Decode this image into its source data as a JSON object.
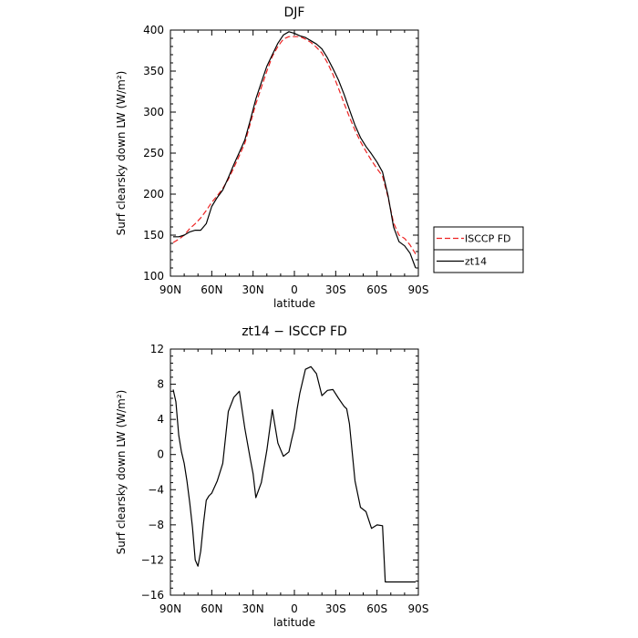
{
  "chart_data": [
    {
      "type": "line",
      "title": "DJF",
      "xlabel": "latitude",
      "ylabel": "Surf clearsky down LW (W/m²)",
      "xlim": [
        90,
        -90
      ],
      "ylim": [
        100,
        400
      ],
      "x_ticks": [
        90,
        60,
        30,
        0,
        -30,
        -60,
        -90
      ],
      "x_tick_labels": [
        "90N",
        "60N",
        "30N",
        "0",
        "30S",
        "60S",
        "90S"
      ],
      "y_ticks": [
        100,
        150,
        200,
        250,
        300,
        350,
        400
      ],
      "y_tick_labels": [
        "100",
        "150",
        "200",
        "250",
        "300",
        "350",
        "400"
      ],
      "legend_position": "outside-right",
      "series": [
        {
          "name": "ISCCP FD",
          "color": "#ee2222",
          "dash": "dashed",
          "x": [
            88,
            84,
            80,
            76,
            72,
            68,
            64,
            60,
            56,
            52,
            48,
            44,
            40,
            36,
            32,
            28,
            24,
            20,
            16,
            12,
            8,
            4,
            0,
            -4,
            -8,
            -12,
            -16,
            -20,
            -24,
            -28,
            -32,
            -36,
            -40,
            -44,
            -48,
            -52,
            -56,
            -60,
            -64,
            -68,
            -72,
            -76,
            -80,
            -84,
            -88
          ],
          "values": [
            141,
            145,
            150,
            158,
            164,
            171,
            180,
            190,
            198,
            207,
            218,
            232,
            247,
            262,
            286,
            310,
            330,
            350,
            368,
            380,
            389,
            392,
            392,
            392,
            389,
            385,
            379,
            372,
            360,
            346,
            329,
            311,
            294,
            278,
            264,
            252,
            241,
            231,
            222,
            196,
            165,
            150,
            146,
            138,
            127
          ]
        },
        {
          "name": "zt14",
          "color": "#000000",
          "dash": "solid",
          "x": [
            88,
            84,
            80,
            76,
            72,
            68,
            64,
            60,
            56,
            52,
            48,
            44,
            40,
            36,
            32,
            28,
            24,
            20,
            16,
            12,
            8,
            4,
            0,
            -4,
            -8,
            -12,
            -16,
            -20,
            -24,
            -28,
            -32,
            -36,
            -40,
            -44,
            -48,
            -52,
            -56,
            -60,
            -64,
            -68,
            -72,
            -76,
            -80,
            -84,
            -88
          ],
          "values": [
            148,
            148,
            150,
            154,
            156,
            156,
            164,
            185,
            196,
            205,
            220,
            236,
            251,
            266,
            290,
            316,
            336,
            356,
            370,
            384,
            394,
            398,
            396,
            393,
            391,
            387,
            383,
            377,
            366,
            353,
            339,
            322,
            303,
            284,
            269,
            258,
            249,
            239,
            227,
            198,
            160,
            142,
            137,
            128,
            110
          ]
        }
      ]
    },
    {
      "type": "line",
      "title": "zt14 − ISCCP FD",
      "xlabel": "latitude",
      "ylabel": "Surf clearsky down LW (W/m²)",
      "xlim": [
        90,
        -90
      ],
      "ylim": [
        -16,
        12
      ],
      "x_ticks": [
        90,
        60,
        30,
        0,
        -30,
        -60,
        -90
      ],
      "x_tick_labels": [
        "90N",
        "60N",
        "30N",
        "0",
        "30S",
        "60S",
        "90S"
      ],
      "y_ticks": [
        12,
        8,
        4,
        0,
        -4,
        -8,
        -12,
        -16
      ],
      "y_tick_labels": [
        "12",
        "8",
        "4",
        "0",
        "−4",
        "−8",
        "−12",
        "−16"
      ],
      "series": [
        {
          "name": "",
          "color": "#000000",
          "dash": "solid",
          "x": [
            88,
            86,
            84,
            82,
            80,
            78,
            76,
            74,
            72,
            70,
            68,
            66,
            64,
            62,
            60,
            56,
            52,
            48,
            44,
            40,
            36,
            32,
            30,
            28,
            24,
            20,
            16,
            12,
            8,
            4,
            2,
            0,
            -2,
            -4,
            -8,
            -12,
            -16,
            -20,
            -24,
            -28,
            -32,
            -36,
            -38,
            -40,
            -44,
            -48,
            -52,
            -56,
            -60,
            -64,
            -66,
            -68,
            -70,
            -72,
            -74,
            -76,
            -80,
            -84,
            -88
          ],
          "values": [
            7.4,
            6.0,
            2.2,
            0.3,
            -1.0,
            -3.0,
            -5.5,
            -8.3,
            -12.0,
            -12.7,
            -11.0,
            -7.8,
            -5.2,
            -4.7,
            -4.4,
            -3.0,
            -1.0,
            4.9,
            6.5,
            7.2,
            3.0,
            -0.5,
            -2.2,
            -4.9,
            -3.2,
            0.5,
            5.1,
            1.3,
            -0.2,
            0.3,
            1.7,
            3.0,
            5.2,
            7.0,
            9.7,
            10.0,
            9.2,
            6.7,
            7.3,
            7.4,
            6.4,
            5.5,
            5.2,
            3.5,
            -3.0,
            -6.0,
            -6.5,
            -8.4,
            -8.0,
            -8.1,
            -14.5,
            -14.5,
            -14.5,
            -14.5,
            -14.5,
            -14.5,
            -14.5,
            -14.5,
            -14.5
          ]
        }
      ]
    }
  ]
}
